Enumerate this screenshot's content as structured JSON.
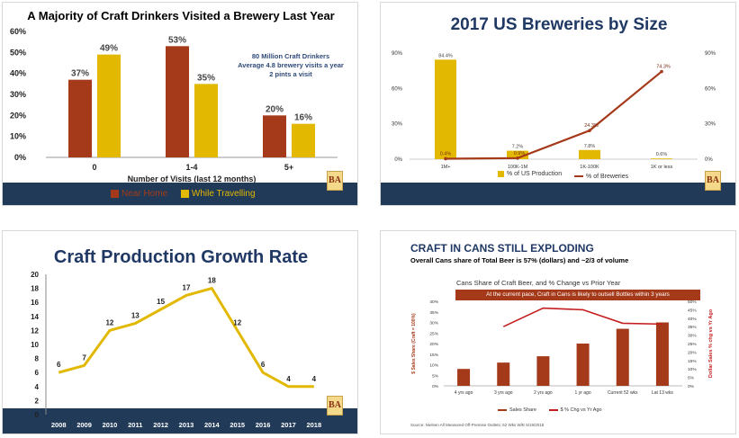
{
  "colors": {
    "rust": "#a43a19",
    "gold": "#e2b800",
    "navy": "#203a58",
    "red": "#c41e1e",
    "title_blue": "#1f3864",
    "annot": "#2e4a7a"
  },
  "logo": {
    "text": "BA"
  },
  "chart_data": [
    {
      "type": "bar",
      "title": "A Majority of Craft Drinkers Visited a Brewery Last Year",
      "xlabel": "Number of Visits (last 12 months)",
      "ylabel": "",
      "ylim": [
        0,
        60
      ],
      "yticks": [
        "0%",
        "10%",
        "20%",
        "30%",
        "40%",
        "50%",
        "60%"
      ],
      "categories": [
        "0",
        "1-4",
        "5+"
      ],
      "series": [
        {
          "name": "Near Home",
          "values": [
            37,
            53,
            20
          ],
          "labels": [
            "37%",
            "53%",
            "20%"
          ]
        },
        {
          "name": "While Travelling",
          "values": [
            49,
            35,
            16
          ],
          "labels": [
            "49%",
            "35%",
            "16%"
          ]
        }
      ],
      "annotation": [
        "80 Million Craft Drinkers",
        "Average 4.8 brewery visits a year",
        "2 pints a visit"
      ],
      "legend": "bottom"
    },
    {
      "type": "bar+line",
      "title": "2017 US Breweries by Size",
      "categories": [
        "1M+",
        "100K-1M",
        "1K-100K",
        "1K or less"
      ],
      "ylim": [
        0,
        90
      ],
      "yticks_left": [
        "0%",
        "30%",
        "60%",
        "90%"
      ],
      "yticks_right": [
        "0%",
        "30%",
        "60%",
        "90%"
      ],
      "series": [
        {
          "name": "% of US Production",
          "kind": "bar",
          "values": [
            84.4,
            7.2,
            7.8,
            0.6
          ],
          "labels": [
            "84.4%",
            "7.2%",
            "7.8%",
            "0.6%"
          ]
        },
        {
          "name": "% of Breweries",
          "kind": "line",
          "values": [
            0.4,
            0.9,
            24.3,
            74.3
          ],
          "labels": [
            "0.4%",
            "0.9%",
            "24.3%",
            "74.3%"
          ]
        }
      ],
      "legend": "bottom"
    },
    {
      "type": "line",
      "title": "Craft Production Growth Rate",
      "x": [
        "2008",
        "2009",
        "2010",
        "2011",
        "2012",
        "2013",
        "2014",
        "2015",
        "2016",
        "2017",
        "2018"
      ],
      "values": [
        6,
        7,
        12,
        13,
        15,
        17,
        18,
        12,
        6,
        4,
        4
      ],
      "labels": [
        "6",
        "7",
        "12",
        "13",
        "15",
        "17",
        "18",
        "12",
        "6",
        "4",
        "4"
      ],
      "ylim": [
        0,
        20
      ],
      "yticks": [
        "0",
        "2",
        "4",
        "6",
        "8",
        "10",
        "12",
        "14",
        "16",
        "18",
        "20"
      ]
    },
    {
      "type": "bar+line",
      "title": "CRAFT IN CANS STILL EXPLODING",
      "subtitle": "Overall Cans share of Total Beer is 57% (dollars) and ~2/3 of volume",
      "chart_title": "Cans Share of Craft Beer, and % Change vs Prior Year",
      "callout": "At the current pace, Craft in Cans is likely to outsell Bottles within 3 years",
      "categories": [
        "4 yrs ago",
        "3 yrs ago",
        "2 yrs ago",
        "1 yr ago",
        "Current 52 wks",
        "Lat 13 wks"
      ],
      "ylabel": "$ Sales Share (Craft = 100%)",
      "y2label": "Dollar Sales % chg vs Yr Ago",
      "ylim": [
        0,
        40
      ],
      "y2lim": [
        0,
        50
      ],
      "yticks": [
        "0%",
        "5%",
        "10%",
        "15%",
        "20%",
        "25%",
        "30%",
        "35%",
        "40%"
      ],
      "y2ticks": [
        "0%",
        "5%",
        "10%",
        "15%",
        "20%",
        "25%",
        "30%",
        "35%",
        "40%",
        "45%",
        "50%"
      ],
      "series": [
        {
          "name": "Sales Share",
          "kind": "bar",
          "values": [
            8,
            11,
            14,
            20,
            27,
            30
          ]
        },
        {
          "name": "$ % Chg vs Yr Ago",
          "kind": "line",
          "values": [
            null,
            35,
            46,
            45,
            37,
            36.5
          ]
        }
      ],
      "source": "Source: Nielsen All Measured Off-Premise Outlets; 52 Wks W/E 5/19/2018"
    }
  ]
}
